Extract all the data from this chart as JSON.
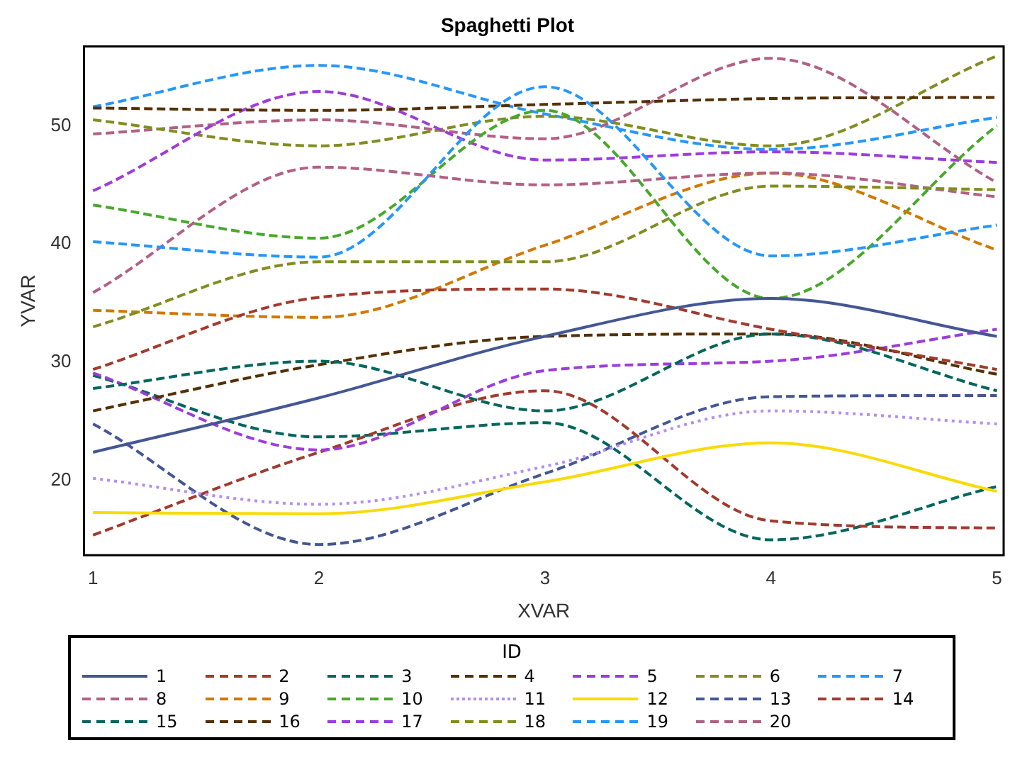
{
  "chart_data": {
    "type": "line",
    "title": "Spaghetti Plot",
    "xlabel": "XVAR",
    "ylabel": "YVAR",
    "legend_title": "ID",
    "x": [
      1,
      2,
      3,
      4,
      5
    ],
    "xlim": [
      0.96,
      5.03
    ],
    "xticks": [
      1,
      2,
      3,
      4,
      5
    ],
    "ylim": [
      13.7,
      56.7
    ],
    "yticks": [
      20,
      30,
      40,
      50
    ],
    "grid": false,
    "legend": "bottom",
    "marker": "none",
    "series": [
      {
        "name": "1",
        "color": "#445694",
        "line_style": "solid",
        "values": [
          22.4,
          27.0,
          32.2,
          35.4,
          32.2
        ]
      },
      {
        "name": "2",
        "color": "#a23a2e",
        "line_style": "dashed",
        "values": [
          29.4,
          35.5,
          36.2,
          32.8,
          29.4
        ]
      },
      {
        "name": "3",
        "color": "#01665e",
        "line_style": "dashed",
        "values": [
          27.8,
          30.1,
          25.9,
          32.4,
          27.6
        ]
      },
      {
        "name": "4",
        "color": "#543005",
        "line_style": "dashed",
        "values": [
          25.9,
          29.8,
          32.2,
          32.4,
          29.0
        ]
      },
      {
        "name": "5",
        "color": "#9d3cdb",
        "line_style": "dashed",
        "values": [
          29.1,
          22.6,
          29.3,
          30.1,
          32.8
        ]
      },
      {
        "name": "6",
        "color": "#7f8e1f",
        "line_style": "dashed",
        "values": [
          33.0,
          38.5,
          38.5,
          44.9,
          44.6
        ]
      },
      {
        "name": "7",
        "color": "#2597fa",
        "line_style": "dashed",
        "values": [
          40.2,
          38.9,
          53.3,
          39.0,
          41.6
        ]
      },
      {
        "name": "8",
        "color": "#b26084",
        "line_style": "dashed",
        "values": [
          35.9,
          46.5,
          45.0,
          46.0,
          44.0
        ]
      },
      {
        "name": "9",
        "color": "#d17800",
        "line_style": "dashed",
        "values": [
          34.4,
          33.8,
          39.9,
          46.0,
          39.5
        ]
      },
      {
        "name": "10",
        "color": "#47a82a",
        "line_style": "dashed",
        "values": [
          43.3,
          40.5,
          51.3,
          35.4,
          50.0
        ]
      },
      {
        "name": "11",
        "color": "#b38ef3",
        "line_style": "dotted",
        "values": [
          20.2,
          18.0,
          21.2,
          25.9,
          24.8
        ]
      },
      {
        "name": "12",
        "color": "#f9da04",
        "line_style": "solid",
        "values": [
          17.3,
          17.2,
          19.9,
          23.2,
          19.1
        ]
      },
      {
        "name": "13",
        "color": "#445694",
        "line_style": "dashed",
        "values": [
          24.8,
          14.6,
          20.6,
          27.1,
          27.2
        ]
      },
      {
        "name": "14",
        "color": "#a23a2e",
        "line_style": "dashed",
        "values": [
          15.4,
          22.4,
          27.6,
          16.6,
          16.0
        ]
      },
      {
        "name": "15",
        "color": "#01665e",
        "line_style": "dashed",
        "values": [
          28.9,
          23.7,
          24.9,
          15.0,
          19.5
        ]
      },
      {
        "name": "16",
        "color": "#543005",
        "line_style": "dashed",
        "values": [
          51.5,
          51.3,
          51.8,
          52.3,
          52.4
        ]
      },
      {
        "name": "17",
        "color": "#9d3cdb",
        "line_style": "dashed",
        "values": [
          44.5,
          52.9,
          47.1,
          47.8,
          46.9
        ]
      },
      {
        "name": "18",
        "color": "#7f8e1f",
        "line_style": "dashed",
        "values": [
          50.5,
          48.3,
          50.8,
          48.3,
          55.9
        ]
      },
      {
        "name": "19",
        "color": "#2597fa",
        "line_style": "dashed",
        "values": [
          51.6,
          55.1,
          51.0,
          48.0,
          50.7
        ]
      },
      {
        "name": "20",
        "color": "#b26084",
        "line_style": "dashed",
        "values": [
          49.3,
          50.5,
          48.9,
          55.7,
          45.2
        ]
      }
    ]
  }
}
